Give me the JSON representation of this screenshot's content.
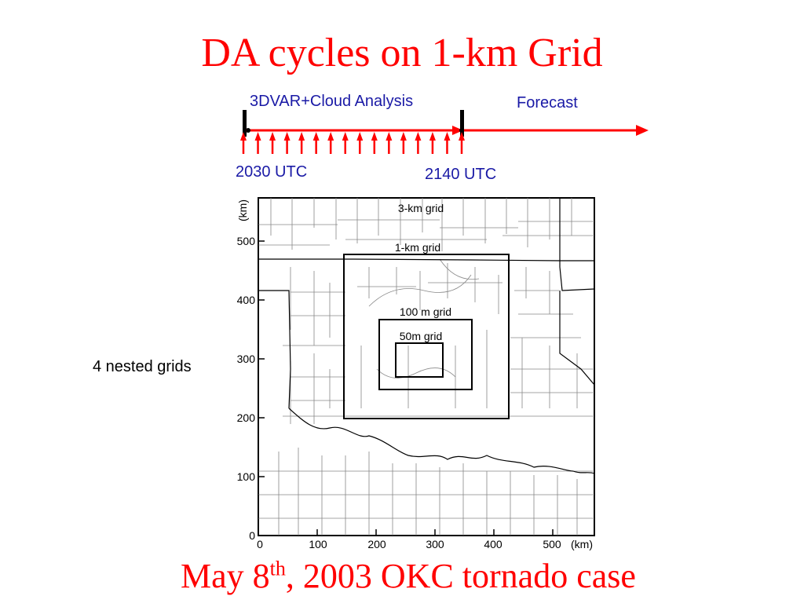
{
  "title": "DA cycles on 1-km Grid",
  "timeline": {
    "phase_analysis": "3DVAR+Cloud Analysis",
    "phase_forecast": "Forecast",
    "start_time": "2030 UTC",
    "end_time": "2140 UTC",
    "arrow_color": "#ff0000",
    "label_color": "#1a1aa6"
  },
  "map": {
    "y_unit": "(km)",
    "x_unit": "(km)",
    "x_ticks": [
      "0",
      "100",
      "200",
      "300",
      "400",
      "500"
    ],
    "y_ticks": [
      "0",
      "100",
      "200",
      "300",
      "400",
      "500"
    ],
    "grids": [
      {
        "label": "3-km grid"
      },
      {
        "label": "1-km grid"
      },
      {
        "label": "100 m grid"
      },
      {
        "label": "50m grid"
      }
    ]
  },
  "side_label": "4 nested grids",
  "bottom": {
    "prefix": "May 8",
    "superscript": "th",
    "suffix": ", 2003 OKC tornado case"
  }
}
